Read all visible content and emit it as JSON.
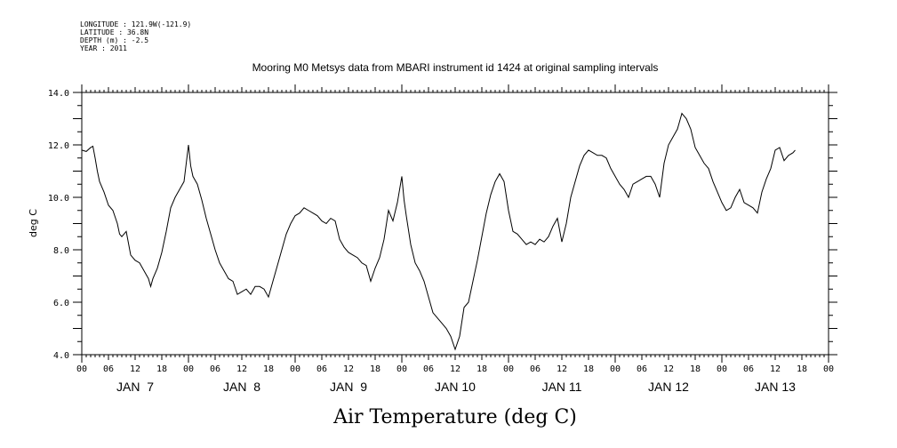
{
  "header": {
    "longitude": "LONGITUDE : 121.9W(-121.9)",
    "latitude": "LATITUDE : 36.8N",
    "depth": "DEPTH (m) : -2.5",
    "year": "YEAR : 2011"
  },
  "chart_data": {
    "type": "line",
    "title": "Mooring M0 Metsys data from MBARI instrument id 1424 at original sampling intervals",
    "xlabel": "Air Temperature (deg C)",
    "ylabel": "deg C",
    "ylim": [
      4.0,
      14.0
    ],
    "yticks": [
      "4.0",
      "6.0",
      "8.0",
      "10.0",
      "12.0",
      "14.0"
    ],
    "xlim_hours": [
      0,
      168
    ],
    "hour_tick_labels": [
      "00",
      "06",
      "12",
      "18",
      "00",
      "06",
      "12",
      "18",
      "00",
      "06",
      "12",
      "18",
      "00",
      "06",
      "12",
      "18",
      "00",
      "06",
      "12",
      "18",
      "00",
      "06",
      "12",
      "18",
      "00",
      "06",
      "12",
      "18",
      "00"
    ],
    "day_labels": [
      "JAN  7",
      "JAN  8",
      "JAN  9",
      "JAN 10",
      "JAN 11",
      "JAN 12",
      "JAN 13"
    ],
    "grid": false,
    "series": [
      {
        "points": [
          [
            0,
            11.8
          ],
          [
            1,
            11.75
          ],
          [
            2,
            11.9
          ],
          [
            2.5,
            11.95
          ],
          [
            3,
            11.5
          ],
          [
            3.5,
            11.0
          ],
          [
            4,
            10.6
          ],
          [
            5,
            10.2
          ],
          [
            6,
            9.7
          ],
          [
            7,
            9.5
          ],
          [
            8,
            9.0
          ],
          [
            8.5,
            8.6
          ],
          [
            9,
            8.5
          ],
          [
            10,
            8.7
          ],
          [
            11,
            7.8
          ],
          [
            12,
            7.6
          ],
          [
            13,
            7.5
          ],
          [
            14,
            7.2
          ],
          [
            15,
            6.9
          ],
          [
            15.5,
            6.6
          ],
          [
            16,
            6.9
          ],
          [
            17,
            7.3
          ],
          [
            18,
            7.9
          ],
          [
            19,
            8.7
          ],
          [
            20,
            9.6
          ],
          [
            21,
            10.0
          ],
          [
            22,
            10.3
          ],
          [
            23,
            10.6
          ],
          [
            24,
            12.0
          ],
          [
            24.5,
            11.2
          ],
          [
            25,
            10.8
          ],
          [
            26,
            10.5
          ],
          [
            27,
            9.9
          ],
          [
            28,
            9.2
          ],
          [
            29,
            8.6
          ],
          [
            30,
            8.0
          ],
          [
            31,
            7.5
          ],
          [
            32,
            7.2
          ],
          [
            33,
            6.9
          ],
          [
            34,
            6.8
          ],
          [
            35,
            6.3
          ],
          [
            36,
            6.4
          ],
          [
            37,
            6.5
          ],
          [
            38,
            6.3
          ],
          [
            39,
            6.6
          ],
          [
            40,
            6.6
          ],
          [
            41,
            6.5
          ],
          [
            42,
            6.2
          ],
          [
            43,
            6.8
          ],
          [
            44,
            7.4
          ],
          [
            45,
            8.0
          ],
          [
            46,
            8.6
          ],
          [
            47,
            9.0
          ],
          [
            48,
            9.3
          ],
          [
            49,
            9.4
          ],
          [
            50,
            9.6
          ],
          [
            51,
            9.5
          ],
          [
            52,
            9.4
          ],
          [
            53,
            9.3
          ],
          [
            54,
            9.1
          ],
          [
            55,
            9.0
          ],
          [
            56,
            9.2
          ],
          [
            57,
            9.1
          ],
          [
            58,
            8.4
          ],
          [
            59,
            8.1
          ],
          [
            60,
            7.9
          ],
          [
            61,
            7.8
          ],
          [
            62,
            7.7
          ],
          [
            63,
            7.5
          ],
          [
            64,
            7.4
          ],
          [
            65,
            6.8
          ],
          [
            66,
            7.3
          ],
          [
            67,
            7.7
          ],
          [
            68,
            8.4
          ],
          [
            69,
            9.5
          ],
          [
            70,
            9.1
          ],
          [
            71,
            9.8
          ],
          [
            72,
            10.8
          ],
          [
            72.5,
            9.9
          ],
          [
            73,
            9.3
          ],
          [
            74,
            8.2
          ],
          [
            75,
            7.5
          ],
          [
            76,
            7.2
          ],
          [
            77,
            6.8
          ],
          [
            78,
            6.2
          ],
          [
            79,
            5.6
          ],
          [
            80,
            5.4
          ],
          [
            81,
            5.2
          ],
          [
            82,
            5.0
          ],
          [
            83,
            4.7
          ],
          [
            84,
            4.2
          ],
          [
            85,
            4.7
          ],
          [
            86,
            5.8
          ],
          [
            87,
            6.0
          ],
          [
            88,
            6.8
          ],
          [
            89,
            7.6
          ],
          [
            90,
            8.5
          ],
          [
            91,
            9.4
          ],
          [
            92,
            10.1
          ],
          [
            93,
            10.6
          ],
          [
            94,
            10.9
          ],
          [
            95,
            10.6
          ],
          [
            96,
            9.5
          ],
          [
            97,
            8.7
          ],
          [
            98,
            8.6
          ],
          [
            99,
            8.4
          ],
          [
            100,
            8.2
          ],
          [
            101,
            8.3
          ],
          [
            102,
            8.2
          ],
          [
            103,
            8.4
          ],
          [
            104,
            8.3
          ],
          [
            105,
            8.5
          ],
          [
            106,
            8.9
          ],
          [
            107,
            9.2
          ],
          [
            108,
            8.3
          ],
          [
            109,
            9.0
          ],
          [
            110,
            10.0
          ],
          [
            111,
            10.6
          ],
          [
            112,
            11.2
          ],
          [
            113,
            11.6
          ],
          [
            114,
            11.8
          ],
          [
            115,
            11.7
          ],
          [
            116,
            11.6
          ],
          [
            117,
            11.6
          ],
          [
            118,
            11.5
          ],
          [
            119,
            11.1
          ],
          [
            120,
            10.8
          ],
          [
            121,
            10.5
          ],
          [
            122,
            10.3
          ],
          [
            123,
            10.0
          ],
          [
            124,
            10.5
          ],
          [
            125,
            10.6
          ],
          [
            126,
            10.7
          ],
          [
            127,
            10.8
          ],
          [
            128,
            10.8
          ],
          [
            129,
            10.5
          ],
          [
            130,
            10.0
          ],
          [
            131,
            11.3
          ],
          [
            132,
            12.0
          ],
          [
            133,
            12.3
          ],
          [
            134,
            12.6
          ],
          [
            135,
            13.2
          ],
          [
            136,
            13.0
          ],
          [
            137,
            12.6
          ],
          [
            138,
            11.9
          ],
          [
            139,
            11.6
          ],
          [
            140,
            11.3
          ],
          [
            141,
            11.1
          ],
          [
            142,
            10.6
          ],
          [
            143,
            10.2
          ],
          [
            144,
            9.8
          ],
          [
            145,
            9.5
          ],
          [
            146,
            9.6
          ],
          [
            147,
            10.0
          ],
          [
            148,
            10.3
          ],
          [
            149,
            9.8
          ],
          [
            150,
            9.7
          ],
          [
            151,
            9.6
          ],
          [
            152,
            9.4
          ],
          [
            153,
            10.2
          ],
          [
            154,
            10.7
          ],
          [
            155,
            11.1
          ],
          [
            156,
            11.8
          ],
          [
            157,
            11.9
          ],
          [
            158,
            11.4
          ],
          [
            159,
            11.6
          ],
          [
            160,
            11.7
          ],
          [
            160.5,
            11.8
          ]
        ]
      }
    ]
  }
}
